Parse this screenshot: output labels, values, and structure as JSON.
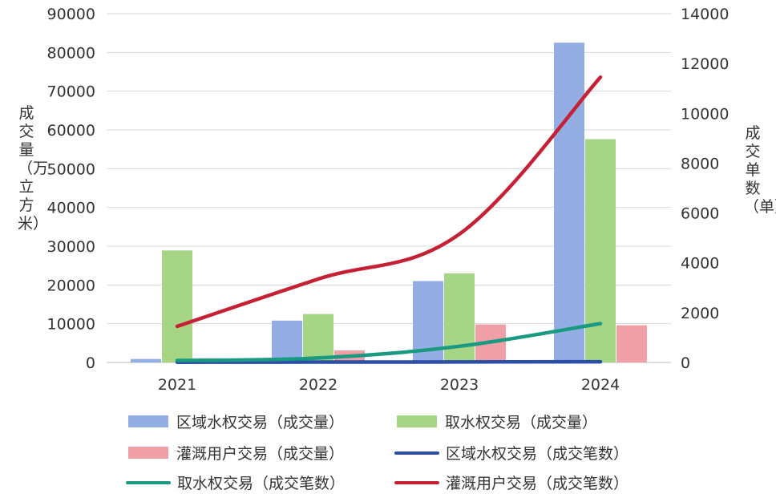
{
  "chart_data": {
    "type": "bar",
    "categories": [
      "2021",
      "2022",
      "2023",
      "2024"
    ],
    "left_axis": {
      "label": "成交量（万立方米）",
      "ylim": [
        0,
        90000
      ],
      "ticks": [
        0,
        10000,
        20000,
        30000,
        40000,
        50000,
        60000,
        70000,
        80000,
        90000
      ]
    },
    "right_axis": {
      "label": "成交单数（单）",
      "ylim": [
        0,
        14000
      ],
      "ticks": [
        0,
        2000,
        4000,
        6000,
        8000,
        10000,
        12000,
        14000
      ]
    },
    "grid": true,
    "legend_position": "bottom",
    "bar_series": [
      {
        "name": "区域水权交易（成交量）",
        "color": "#93aee2",
        "axis": "left",
        "values": [
          900,
          10800,
          21000,
          82500
        ]
      },
      {
        "name": "取水权交易（成交量）",
        "color": "#a6d585",
        "axis": "left",
        "values": [
          28900,
          12500,
          23000,
          57600
        ]
      },
      {
        "name": "灌溉用户交易（成交量）",
        "color": "#ef9fa5",
        "axis": "left",
        "values": [
          0,
          3100,
          9800,
          9600
        ]
      }
    ],
    "line_series": [
      {
        "name": "区域水权交易（成交笔数）",
        "color": "#2b4fa6",
        "axis": "right",
        "values": [
          10,
          15,
          20,
          30
        ]
      },
      {
        "name": "取水权交易（成交笔数）",
        "color": "#1a9a80",
        "axis": "right",
        "values": [
          80,
          180,
          650,
          1560
        ]
      },
      {
        "name": "灌溉用户交易（成交笔数）",
        "color": "#c62035",
        "axis": "right",
        "values": [
          1450,
          3350,
          5150,
          11450
        ]
      }
    ]
  },
  "legend": [
    {
      "label": "区域水权交易（成交量）",
      "kind": "box",
      "color": "#93aee2"
    },
    {
      "label": "取水权交易（成交量）",
      "kind": "box",
      "color": "#a6d585"
    },
    {
      "label": "灌溉用户交易（成交量）",
      "kind": "box",
      "color": "#ef9fa5"
    },
    {
      "label": "区域水权交易（成交笔数）",
      "kind": "line",
      "color": "#2b4fa6"
    },
    {
      "label": "取水权交易（成交笔数）",
      "kind": "line",
      "color": "#1a9a80"
    },
    {
      "label": "灌溉用户交易（成交笔数）",
      "kind": "line",
      "color": "#c62035"
    }
  ]
}
